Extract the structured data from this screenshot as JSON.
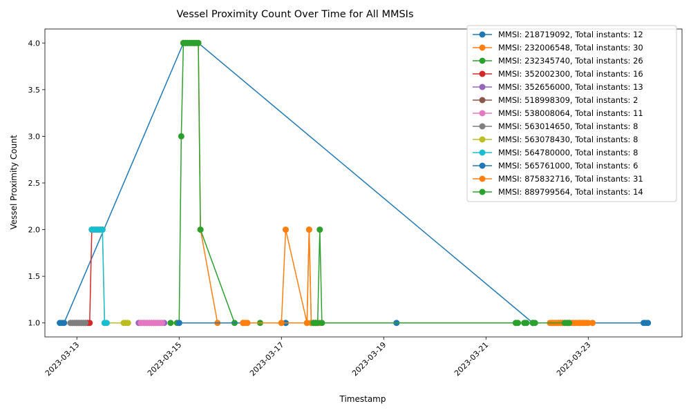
{
  "chart_data": {
    "type": "line",
    "title": "Vessel Proximity Count Over Time for All MMSIs",
    "xlabel": "Timestamp",
    "ylabel": "Vessel Proximity Count",
    "xlim": [
      "2023-03-12 09:00",
      "2023-03-24 20:00"
    ],
    "ylim": [
      0.85,
      4.15
    ],
    "x_ticks": [
      "2023-03-13",
      "2023-03-15",
      "2023-03-17",
      "2023-03-19",
      "2023-03-21",
      "2023-03-23"
    ],
    "y_ticks": [
      "1.0",
      "1.5",
      "2.0",
      "2.5",
      "3.0",
      "3.5",
      "4.0"
    ],
    "y_tick_values": [
      1.0,
      1.5,
      2.0,
      2.5,
      3.0,
      3.5,
      4.0
    ],
    "grid": false,
    "legend_position": "top-right",
    "series": [
      {
        "name": "MMSI: 218719092, Total instants: 12",
        "color": "#1f77b4",
        "x": [
          "2023-03-12 16:00",
          "2023-03-12 17:00",
          "2023-03-12 18:00",
          "2023-03-15 02:00",
          "2023-03-15 03:00",
          "2023-03-15 04:00",
          "2023-03-15 05:00",
          "2023-03-15 06:00",
          "2023-03-15 07:00",
          "2023-03-15 08:00",
          "2023-03-15 09:00",
          "2023-03-21 22:00"
        ],
        "y": [
          1,
          1,
          1,
          4,
          4,
          4,
          4,
          4,
          4,
          4,
          4,
          1
        ]
      },
      {
        "name": "MMSI: 232006548, Total instants: 30",
        "color": "#ff7f0e",
        "x": [
          "2023-03-15 02:00",
          "2023-03-15 03:00",
          "2023-03-15 04:00",
          "2023-03-15 05:00",
          "2023-03-15 06:00",
          "2023-03-15 07:00",
          "2023-03-15 08:00",
          "2023-03-15 09:00",
          "2023-03-15 10:00",
          "2023-03-15 18:00",
          "2023-03-16 06:00",
          "2023-03-16 08:00",
          "2023-03-17 00:00",
          "2023-03-17 02:00",
          "2023-03-17 12:00",
          "2023-03-17 13:00",
          "2023-03-17 14:00",
          "2023-03-17 15:00",
          "2023-03-17 16:00",
          "2023-03-17 17:00",
          "2023-03-17 18:00",
          "2023-03-22 07:00",
          "2023-03-22 08:00",
          "2023-03-22 09:00",
          "2023-03-22 10:00",
          "2023-03-22 11:00",
          "2023-03-22 12:00",
          "2023-03-22 20:00",
          "2023-03-22 22:00",
          "2023-03-23 02:00"
        ],
        "y": [
          4,
          4,
          4,
          4,
          4,
          4,
          4,
          4,
          2,
          1,
          1,
          1,
          1,
          2,
          1,
          2,
          1,
          1,
          1,
          1,
          1,
          1,
          1,
          1,
          1,
          1,
          1,
          1,
          1,
          1
        ]
      },
      {
        "name": "MMSI: 232345740, Total instants: 26",
        "color": "#2ca02c",
        "x": [
          "2023-03-14 20:00",
          "2023-03-14 23:00",
          "2023-03-15 00:00",
          "2023-03-15 01:00",
          "2023-03-15 02:00",
          "2023-03-15 03:00",
          "2023-03-15 04:00",
          "2023-03-15 05:00",
          "2023-03-15 06:00",
          "2023-03-15 07:00",
          "2023-03-15 08:00",
          "2023-03-15 09:00",
          "2023-03-15 10:00",
          "2023-03-16 02:00",
          "2023-03-16 06:00",
          "2023-03-16 07:00",
          "2023-03-16 14:00",
          "2023-03-17 02:00",
          "2023-03-17 14:00",
          "2023-03-17 15:00",
          "2023-03-17 16:00",
          "2023-03-17 17:00",
          "2023-03-21 14:00",
          "2023-03-21 18:00",
          "2023-03-21 22:00",
          "2023-03-22 15:00"
        ],
        "y": [
          1,
          1,
          1,
          3,
          4,
          4,
          4,
          4,
          4,
          4,
          4,
          4,
          2,
          1,
          1,
          1,
          1,
          1,
          1,
          1,
          1,
          1,
          1,
          1,
          1,
          1
        ]
      },
      {
        "name": "MMSI: 352002300, Total instants: 16",
        "color": "#d62728",
        "x": [
          "2023-03-12 21:00",
          "2023-03-12 22:00",
          "2023-03-12 23:00",
          "2023-03-13 00:00",
          "2023-03-13 01:00",
          "2023-03-13 02:00",
          "2023-03-13 03:00",
          "2023-03-13 04:00",
          "2023-03-13 05:00",
          "2023-03-13 06:00",
          "2023-03-13 07:00",
          "2023-03-13 08:00",
          "2023-03-13 09:00",
          "2023-03-13 10:00",
          "2023-03-13 11:00",
          "2023-03-13 12:00"
        ],
        "y": [
          1,
          1,
          1,
          1,
          1,
          1,
          1,
          1,
          1,
          1,
          2,
          2,
          2,
          2,
          2,
          2
        ]
      },
      {
        "name": "MMSI: 352656000, Total instants: 13",
        "color": "#9467bd",
        "x": [
          "2023-03-14 05:00",
          "2023-03-14 06:00",
          "2023-03-14 07:00",
          "2023-03-14 08:00",
          "2023-03-14 09:00",
          "2023-03-14 10:00",
          "2023-03-14 11:00",
          "2023-03-14 12:00",
          "2023-03-14 13:00",
          "2023-03-14 14:00",
          "2023-03-14 15:00",
          "2023-03-14 16:00",
          "2023-03-14 17:00"
        ],
        "y": [
          1,
          1,
          1,
          1,
          1,
          1,
          1,
          1,
          1,
          1,
          1,
          1,
          1
        ]
      },
      {
        "name": "MMSI: 518998309, Total instants: 2",
        "color": "#8c564b",
        "x": [
          "2023-03-13 00:00",
          "2023-03-13 01:00"
        ],
        "y": [
          1,
          1
        ]
      },
      {
        "name": "MMSI: 538008064, Total instants: 11",
        "color": "#e377c2",
        "x": [
          "2023-03-14 06:00",
          "2023-03-14 07:00",
          "2023-03-14 08:00",
          "2023-03-14 09:00",
          "2023-03-14 10:00",
          "2023-03-14 11:00",
          "2023-03-14 12:00",
          "2023-03-14 13:00",
          "2023-03-14 14:00",
          "2023-03-14 15:00",
          "2023-03-14 16:00"
        ],
        "y": [
          1,
          1,
          1,
          1,
          1,
          1,
          1,
          1,
          1,
          1,
          1
        ]
      },
      {
        "name": "MMSI: 563014650, Total instants: 8",
        "color": "#7f7f7f",
        "x": [
          "2023-03-12 21:00",
          "2023-03-12 22:00",
          "2023-03-12 23:00",
          "2023-03-13 00:00",
          "2023-03-13 01:00",
          "2023-03-13 02:00",
          "2023-03-13 03:00",
          "2023-03-13 04:00"
        ],
        "y": [
          1,
          1,
          1,
          1,
          1,
          1,
          1,
          1
        ]
      },
      {
        "name": "MMSI: 563078430, Total instants: 8",
        "color": "#bcbd22",
        "x": [
          "2023-03-13 09:00",
          "2023-03-13 10:00",
          "2023-03-13 11:00",
          "2023-03-13 12:00",
          "2023-03-13 13:00",
          "2023-03-13 22:00",
          "2023-03-13 23:00",
          "2023-03-14 00:00"
        ],
        "y": [
          2,
          2,
          2,
          2,
          1,
          1,
          1,
          1
        ]
      },
      {
        "name": "MMSI: 564780000, Total instants: 8",
        "color": "#17becf",
        "x": [
          "2023-03-13 07:00",
          "2023-03-13 08:00",
          "2023-03-13 09:00",
          "2023-03-13 10:00",
          "2023-03-13 11:00",
          "2023-03-13 12:00",
          "2023-03-13 13:00",
          "2023-03-13 14:00"
        ],
        "y": [
          2,
          2,
          2,
          2,
          2,
          2,
          1,
          1
        ]
      },
      {
        "name": "MMSI: 565761000, Total instants: 6",
        "color": "#1f77b4",
        "x": [
          "2023-03-15 00:00",
          "2023-03-17 02:00",
          "2023-03-19 06:00",
          "2023-03-24 02:00",
          "2023-03-24 03:00",
          "2023-03-24 04:00"
        ],
        "y": [
          1,
          1,
          1,
          1,
          1,
          1
        ]
      },
      {
        "name": "MMSI: 875832716, Total instants: 31",
        "color": "#ff7f0e",
        "x": [
          "2023-03-16 06:00",
          "2023-03-16 07:00",
          "2023-03-16 08:00",
          "2023-03-17 00:00",
          "2023-03-17 12:00",
          "2023-03-17 13:00",
          "2023-03-17 14:00",
          "2023-03-17 15:00",
          "2023-03-17 16:00",
          "2023-03-17 17:00",
          "2023-03-17 18:00",
          "2023-03-22 06:00",
          "2023-03-22 07:00",
          "2023-03-22 08:00",
          "2023-03-22 09:00",
          "2023-03-22 10:00",
          "2023-03-22 11:00",
          "2023-03-22 12:00",
          "2023-03-22 13:00",
          "2023-03-22 14:00",
          "2023-03-22 15:00",
          "2023-03-22 16:00",
          "2023-03-22 17:00",
          "2023-03-22 18:00",
          "2023-03-22 19:00",
          "2023-03-22 20:00",
          "2023-03-22 21:00",
          "2023-03-22 22:00",
          "2023-03-22 23:00",
          "2023-03-23 00:00",
          "2023-03-23 02:00"
        ],
        "y": [
          1,
          1,
          1,
          1,
          1,
          2,
          1,
          1,
          1,
          1,
          1,
          1,
          1,
          1,
          1,
          1,
          1,
          1,
          1,
          1,
          1,
          1,
          1,
          1,
          1,
          1,
          1,
          1,
          1,
          1,
          1
        ]
      },
      {
        "name": "MMSI: 889799564, Total instants: 14",
        "color": "#2ca02c",
        "x": [
          "2023-03-17 15:00",
          "2023-03-17 16:00",
          "2023-03-17 17:00",
          "2023-03-17 18:00",
          "2023-03-17 19:00",
          "2023-03-21 14:00",
          "2023-03-21 15:00",
          "2023-03-21 18:00",
          "2023-03-21 19:00",
          "2023-03-21 22:00",
          "2023-03-21 23:00",
          "2023-03-22 13:00",
          "2023-03-22 14:00",
          "2023-03-22 15:00"
        ],
        "y": [
          1,
          1,
          1,
          2,
          1,
          1,
          1,
          1,
          1,
          1,
          1,
          1,
          1,
          1
        ]
      }
    ]
  }
}
